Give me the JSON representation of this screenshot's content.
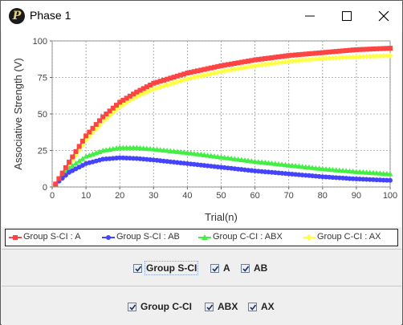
{
  "window": {
    "title": "Phase 1",
    "icon": "P"
  },
  "controls": {
    "minimize": "minimize-icon",
    "maximize": "maximize-icon",
    "close": "close-icon"
  },
  "chart_data": {
    "type": "line",
    "title": "",
    "xlabel": "Trial(n)",
    "ylabel": "Associative Strength (V)",
    "xlim": [
      0,
      100
    ],
    "ylim": [
      0,
      100
    ],
    "xticks": [
      0,
      10,
      20,
      30,
      40,
      50,
      60,
      70,
      80,
      90,
      100
    ],
    "yticks": [
      0,
      25,
      50,
      75,
      100
    ],
    "grid": true,
    "legend_position": "bottom",
    "x": [
      1,
      5,
      10,
      15,
      20,
      25,
      30,
      40,
      50,
      60,
      70,
      80,
      90,
      100
    ],
    "series": [
      {
        "name": "Group S-CI : A",
        "color": "#ff4444",
        "marker": "square",
        "values": [
          2,
          17,
          35,
          48,
          58,
          65,
          71,
          78,
          83,
          87,
          90,
          92,
          94,
          95
        ]
      },
      {
        "name": "Group S-CI : AB",
        "color": "#4444ff",
        "marker": "circle",
        "values": [
          2,
          10,
          16,
          19,
          20,
          19.5,
          18.5,
          16,
          13.5,
          11,
          9,
          7,
          5.5,
          4.5
        ]
      },
      {
        "name": "Group C-CI : ABX",
        "color": "#44ee44",
        "marker": "triangle",
        "values": [
          2,
          13,
          21,
          25,
          27,
          27,
          26,
          23.5,
          20.5,
          17.5,
          15,
          12.5,
          10.5,
          9
        ]
      },
      {
        "name": "Group C-CI : AX",
        "color": "#ffff44",
        "marker": "diamond",
        "values": [
          2,
          15,
          32,
          45,
          55,
          62,
          67,
          74,
          79,
          83,
          86,
          88,
          89,
          90
        ]
      }
    ]
  },
  "groups": [
    {
      "items": [
        {
          "label": "Group S-CI",
          "checked": true
        },
        {
          "label": "A",
          "checked": true
        },
        {
          "label": "AB",
          "checked": true
        }
      ]
    },
    {
      "items": [
        {
          "label": "Group C-CI",
          "checked": true
        },
        {
          "label": "ABX",
          "checked": true
        },
        {
          "label": "AX",
          "checked": true
        }
      ]
    }
  ]
}
